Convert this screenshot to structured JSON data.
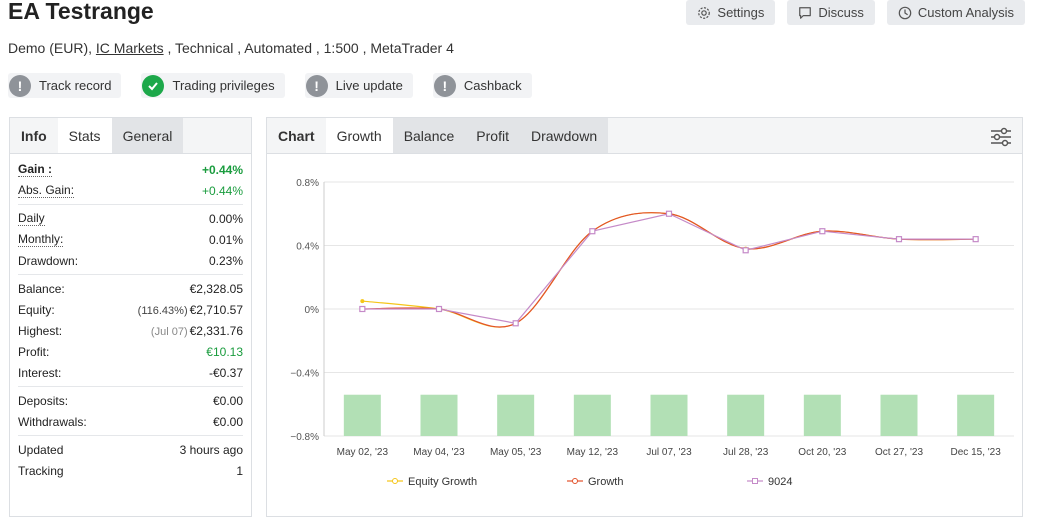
{
  "header": {
    "title": "EA Testrange",
    "buttons": {
      "settings": "Settings",
      "discuss": "Discuss",
      "custom": "Custom Analysis"
    },
    "sub_prefix": "Demo (EUR), ",
    "broker": "IC Markets",
    "sub_suffix": " , Technical , Automated , 1:500 , MetaTrader 4"
  },
  "badges": [
    {
      "label": "Track record",
      "icon": "exclamation-icon",
      "status": "gray"
    },
    {
      "label": "Trading privileges",
      "icon": "check-icon",
      "status": "green"
    },
    {
      "label": "Live update",
      "icon": "exclamation-icon",
      "status": "gray"
    },
    {
      "label": "Cashback",
      "icon": "exclamation-icon",
      "status": "gray"
    }
  ],
  "left_tabs": {
    "info": "Info",
    "stats": "Stats",
    "general": "General"
  },
  "stats": {
    "gain_label": "Gain :",
    "gain": "+0.44%",
    "abs_gain_label": "Abs. Gain:",
    "abs_gain": "+0.44%",
    "daily_label": "Daily",
    "daily": "0.00%",
    "monthly_label": "Monthly:",
    "monthly": "0.01%",
    "drawdown_label": "Drawdown:",
    "drawdown": "0.23%",
    "balance_label": "Balance:",
    "balance": "€2,328.05",
    "equity_label": "Equity:",
    "equity_pct": "(116.43%)",
    "equity": "€2,710.57",
    "highest_label": "Highest:",
    "highest_date": "(Jul 07)",
    "highest": "€2,331.76",
    "profit_label": "Profit:",
    "profit": "€10.13",
    "interest_label": "Interest:",
    "interest": "-€0.37",
    "deposits_label": "Deposits:",
    "deposits": "€0.00",
    "withdrawals_label": "Withdrawals:",
    "withdrawals": "€0.00",
    "updated_label": "Updated",
    "updated": "3 hours ago",
    "tracking_label": "Tracking",
    "tracking": "1"
  },
  "chart_tabs": {
    "chart": "Chart",
    "growth": "Growth",
    "balance": "Balance",
    "profit": "Profit",
    "drawdown": "Drawdown"
  },
  "colors": {
    "equity": "#f5c518",
    "growth": "#e2522b",
    "series3": "#c58ac8",
    "bars": "#b2e0b5",
    "positive": "#1a9c3e"
  },
  "chart_data": {
    "type": "line",
    "categories": [
      "May 02, '23",
      "May 04, '23",
      "May 05, '23",
      "May 12, '23",
      "Jul 07, '23",
      "Jul 28, '23",
      "Oct 20, '23",
      "Oct 27, '23",
      "Dec 15, '23"
    ],
    "y_ticks": [
      "0.8%",
      "0.4%",
      "0%",
      "−0.4%",
      "−0.8%"
    ],
    "ylim": [
      -0.8,
      0.8
    ],
    "series": [
      {
        "name": "Equity Growth",
        "values": [
          0.05,
          0.0,
          -0.09,
          0.49,
          0.6,
          0.38,
          0.49,
          0.44,
          0.44
        ]
      },
      {
        "name": "Growth",
        "values": [
          0.0,
          0.0,
          -0.09,
          0.49,
          0.6,
          0.38,
          0.49,
          0.44,
          0.44
        ]
      },
      {
        "name": "9024",
        "values": [
          0.0,
          0.0,
          -0.09,
          0.49,
          0.6,
          0.37,
          0.49,
          0.44,
          0.44
        ]
      }
    ],
    "bar_values": [
      -0.54,
      -0.54,
      -0.54,
      -0.54,
      -0.54,
      -0.54,
      -0.54,
      -0.54,
      -0.54
    ]
  }
}
